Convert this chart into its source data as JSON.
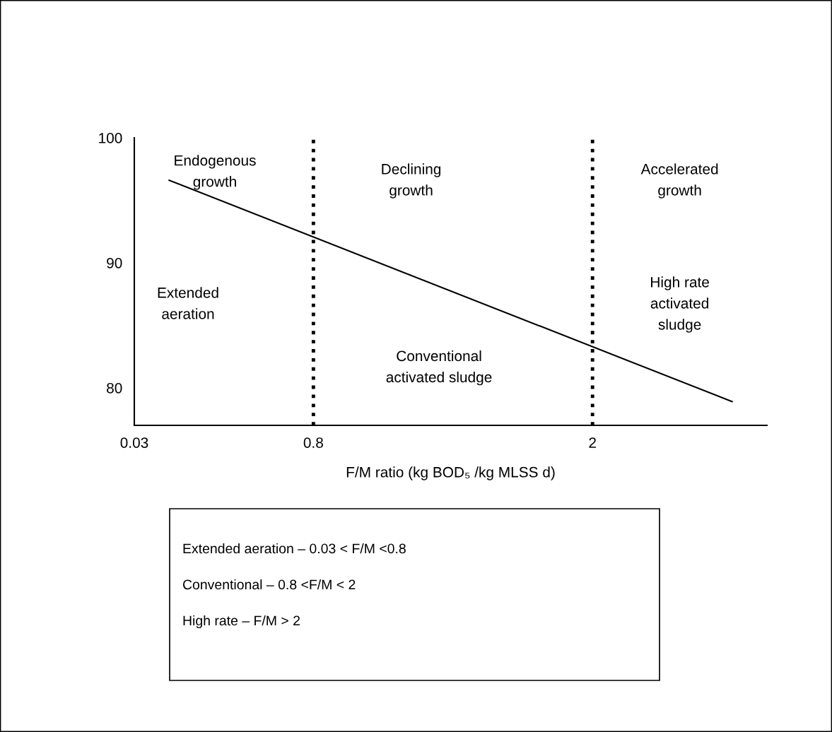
{
  "chart_data": {
    "type": "line",
    "xlabel": "F/M ratio (kg BOD₅ /kg MLSS d)",
    "x": [
      0.18,
      2.6
    ],
    "series": [
      {
        "color": "#000000",
        "values": [
          96.6,
          78.9
        ]
      }
    ],
    "xlim": [
      0.03,
      2.75
    ],
    "xticks": [
      0.03,
      0.8,
      2
    ],
    "ylim": [
      77,
      100
    ],
    "yticks": [
      80,
      90,
      100
    ],
    "grid": false,
    "legend": false,
    "marker": "none",
    "line_style": "solid",
    "ref_lines": [
      {
        "axis": "x",
        "value": 0.8,
        "color": "#000000",
        "line_style": "dotted"
      },
      {
        "axis": "x",
        "value": 2,
        "color": "#000000",
        "line_style": "dotted"
      }
    ],
    "annotations": [
      "Endogenous\ngrowth",
      "Declining\ngrowth",
      "Accelerated\ngrowth",
      "Extended\naeration",
      "Conventional\nactivated sludge",
      "High rate\nactivated\nsludge",
      "Extended aeration – 0.03 < F/M <0.8",
      "Conventional – 0.8 <F/M < 2",
      "High rate – F/M > 2"
    ]
  }
}
